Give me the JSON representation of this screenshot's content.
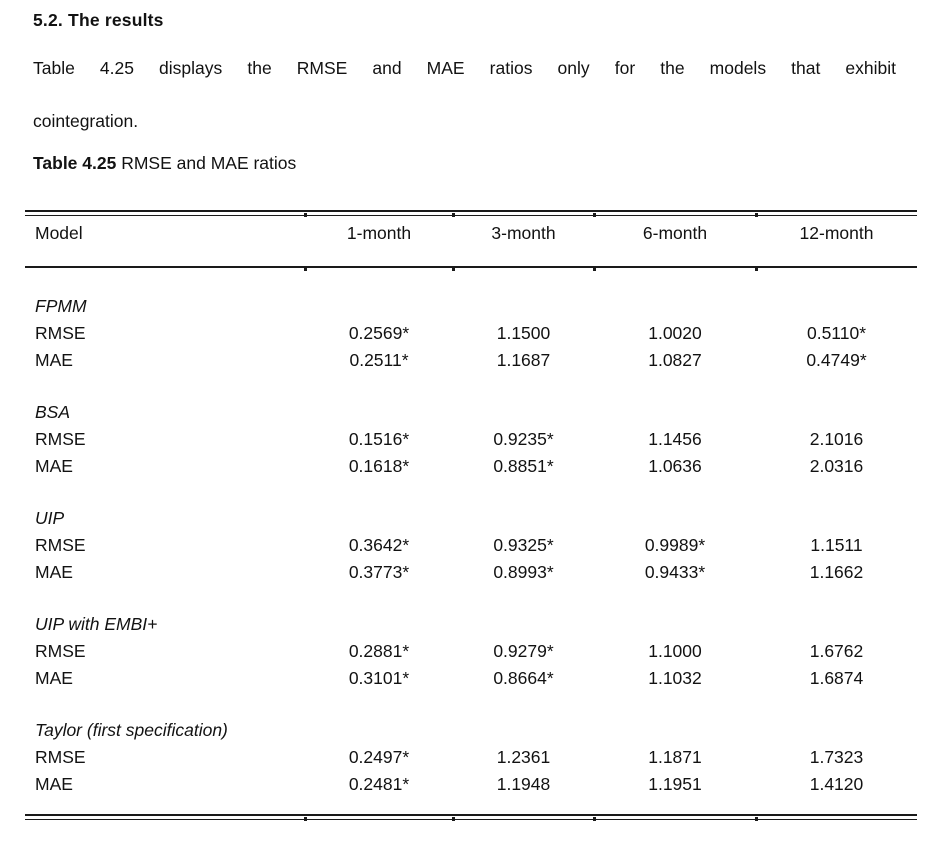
{
  "page": {
    "heading": "5.2. The results",
    "paragraph_line1": "Table 4.25 displays the RMSE and MAE ratios only for the models that exhibit",
    "paragraph_line2": "cointegration.",
    "caption_bold": "Table 4.25",
    "caption_rest": " RMSE and MAE ratios"
  },
  "table": {
    "columns": [
      "Model",
      "1-month",
      "3-month",
      "6-month",
      "12-month"
    ],
    "groups": [
      {
        "model": "FPMM",
        "rows": [
          {
            "label": "RMSE",
            "values": [
              "0.2569*",
              "1.1500",
              "1.0020",
              "0.5110*"
            ]
          },
          {
            "label": "MAE",
            "values": [
              "0.2511*",
              "1.1687",
              "1.0827",
              "0.4749*"
            ]
          }
        ]
      },
      {
        "model": "BSA",
        "rows": [
          {
            "label": "RMSE",
            "values": [
              "0.1516*",
              "0.9235*",
              "1.1456",
              "2.1016"
            ]
          },
          {
            "label": "MAE",
            "values": [
              "0.1618*",
              "0.8851*",
              "1.0636",
              "2.0316"
            ]
          }
        ]
      },
      {
        "model": "UIP",
        "rows": [
          {
            "label": "RMSE",
            "values": [
              "0.3642*",
              "0.9325*",
              "0.9989*",
              "1.1511"
            ]
          },
          {
            "label": "MAE",
            "values": [
              "0.3773*",
              "0.8993*",
              "0.9433*",
              "1.1662"
            ]
          }
        ]
      },
      {
        "model": "UIP with EMBI+",
        "rows": [
          {
            "label": "RMSE",
            "values": [
              "0.2881*",
              "0.9279*",
              "1.1000",
              "1.6762"
            ]
          },
          {
            "label": "MAE",
            "values": [
              "0.3101*",
              "0.8664*",
              "1.1032",
              "1.6874"
            ]
          }
        ]
      },
      {
        "model": "Taylor (first specification)",
        "rows": [
          {
            "label": "RMSE",
            "values": [
              "0.2497*",
              "1.2361",
              "1.1871",
              "1.7323"
            ]
          },
          {
            "label": "MAE",
            "values": [
              "0.2481*",
              "1.1948",
              "1.1951",
              "1.4120"
            ]
          }
        ]
      }
    ]
  }
}
